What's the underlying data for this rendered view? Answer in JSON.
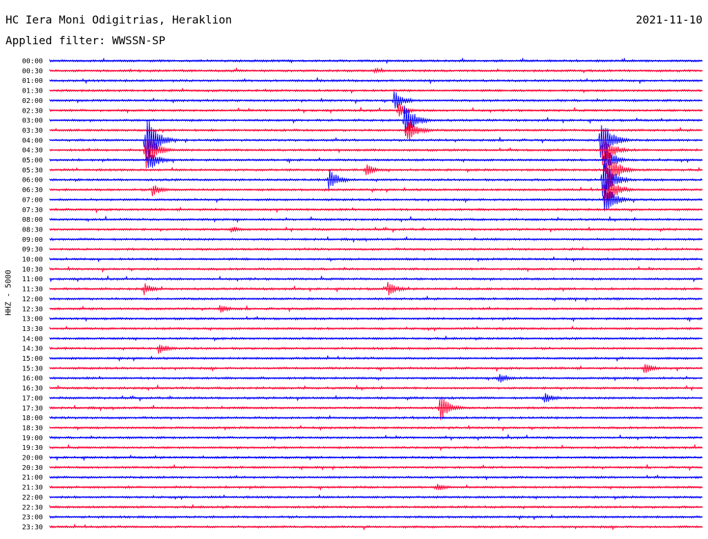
{
  "header": {
    "station": "HC Iera Moni Odigitrias, Heraklion",
    "date": "2021-11-10",
    "filter": "Applied filter: WWSSN-SP",
    "channel": "HHZ - 5000"
  },
  "chart_data": {
    "type": "seismogram-helicorder",
    "title": "HC Iera Moni Odigitrias, Heraklion",
    "date": "2021-11-10",
    "filter": "WWSSN-SP",
    "ylabel": "HHZ - 5000",
    "row_minutes": 30,
    "colors": [
      "#0000ff",
      "#ff0033"
    ],
    "rows": [
      "00:00",
      "00:30",
      "01:00",
      "01:30",
      "02:00",
      "02:30",
      "03:00",
      "03:30",
      "04:00",
      "04:30",
      "05:00",
      "05:30",
      "06:00",
      "06:30",
      "07:00",
      "07:30",
      "08:00",
      "08:30",
      "09:00",
      "09:30",
      "10:00",
      "10:30",
      "11:00",
      "11:30",
      "12:00",
      "12:30",
      "13:00",
      "13:30",
      "14:00",
      "14:30",
      "15:00",
      "15:30",
      "16:00",
      "16:30",
      "17:00",
      "17:30",
      "18:00",
      "18:30",
      "19:00",
      "19:30",
      "20:00",
      "20:30",
      "21:00",
      "21:30",
      "22:00",
      "22:30",
      "23:00",
      "23:30"
    ],
    "events": [
      {
        "row": "00:30",
        "minute": 14.9,
        "amplitude": 5
      },
      {
        "row": "02:00",
        "minute": 15.8,
        "amplitude": 16
      },
      {
        "row": "02:30",
        "minute": 16.0,
        "amplitude": 12
      },
      {
        "row": "03:00",
        "minute": 16.3,
        "amplitude": 30
      },
      {
        "row": "03:30",
        "minute": 16.4,
        "amplitude": 22
      },
      {
        "row": "04:00",
        "minute": 4.4,
        "amplitude": 45
      },
      {
        "row": "04:30",
        "minute": 4.4,
        "amplitude": 32
      },
      {
        "row": "05:00",
        "minute": 4.5,
        "amplitude": 20
      },
      {
        "row": "05:30",
        "minute": 14.5,
        "amplitude": 10
      },
      {
        "row": "06:00",
        "minute": 12.8,
        "amplitude": 18
      },
      {
        "row": "06:30",
        "minute": 4.7,
        "amplitude": 10
      },
      {
        "row": "04:00",
        "minute": 25.3,
        "amplitude": 40
      },
      {
        "row": "04:30",
        "minute": 25.4,
        "amplitude": 28
      },
      {
        "row": "05:00",
        "minute": 25.5,
        "amplitude": 22
      },
      {
        "row": "05:30",
        "minute": 25.6,
        "amplitude": 34
      },
      {
        "row": "06:00",
        "minute": 25.4,
        "amplitude": 36
      },
      {
        "row": "06:30",
        "minute": 25.5,
        "amplitude": 32
      },
      {
        "row": "07:00",
        "minute": 25.5,
        "amplitude": 26
      },
      {
        "row": "08:30",
        "minute": 8.3,
        "amplitude": 6
      },
      {
        "row": "11:30",
        "minute": 4.3,
        "amplitude": 10
      },
      {
        "row": "11:30",
        "minute": 15.5,
        "amplitude": 12
      },
      {
        "row": "12:30",
        "minute": 7.8,
        "amplitude": 7
      },
      {
        "row": "14:30",
        "minute": 5.0,
        "amplitude": 9
      },
      {
        "row": "15:30",
        "minute": 27.3,
        "amplitude": 9
      },
      {
        "row": "16:00",
        "minute": 20.6,
        "amplitude": 9
      },
      {
        "row": "17:00",
        "minute": 22.7,
        "amplitude": 10
      },
      {
        "row": "17:30",
        "minute": 17.9,
        "amplitude": 22
      },
      {
        "row": "21:30",
        "minute": 17.8,
        "amplitude": 6
      }
    ]
  }
}
